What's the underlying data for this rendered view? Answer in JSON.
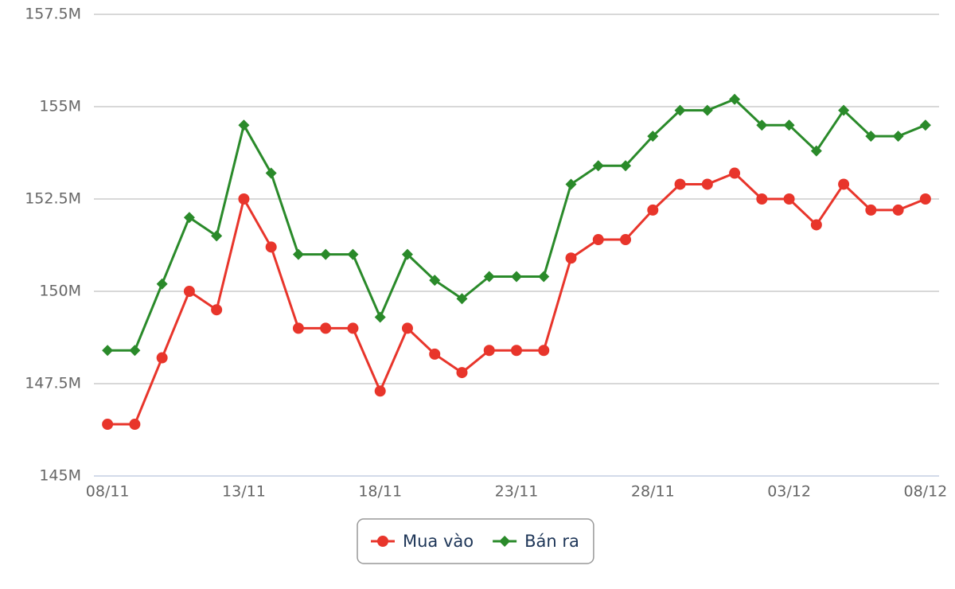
{
  "chart_data": {
    "type": "line",
    "categories": [
      "08/11",
      null,
      null,
      null,
      null,
      "13/11",
      null,
      null,
      null,
      null,
      "18/11",
      null,
      null,
      null,
      null,
      "23/11",
      null,
      null,
      null,
      null,
      "28/11",
      null,
      null,
      null,
      null,
      "03/12",
      null,
      null,
      null,
      null,
      "08/12"
    ],
    "series": [
      {
        "name": "Mua vào",
        "color": "#e8352b",
        "marker": "circle",
        "values": [
          146.4,
          146.4,
          148.2,
          150.0,
          149.5,
          152.5,
          151.2,
          149.0,
          149.0,
          149.0,
          147.3,
          149.0,
          148.3,
          147.8,
          148.4,
          148.4,
          148.4,
          150.9,
          151.4,
          151.4,
          152.2,
          152.9,
          152.9,
          153.2,
          152.5,
          152.5,
          151.8,
          152.9,
          152.2,
          152.2,
          152.5
        ]
      },
      {
        "name": "Bán ra",
        "color": "#2a8a2a",
        "marker": "diamond",
        "values": [
          148.4,
          148.4,
          150.2,
          152.0,
          151.5,
          154.5,
          153.2,
          151.0,
          151.0,
          151.0,
          149.3,
          151.0,
          150.3,
          149.8,
          150.4,
          150.4,
          150.4,
          152.9,
          153.4,
          153.4,
          154.2,
          154.9,
          154.9,
          155.2,
          154.5,
          154.5,
          153.8,
          154.9,
          154.2,
          154.2,
          154.5
        ]
      }
    ],
    "ylim": [
      145,
      157.5
    ],
    "yticks": [
      {
        "value": 145,
        "label": "145M"
      },
      {
        "value": 147.5,
        "label": "147.5M"
      },
      {
        "value": 150,
        "label": "150M"
      },
      {
        "value": 152.5,
        "label": "152.5M"
      },
      {
        "value": 155,
        "label": "155M"
      },
      {
        "value": 157.5,
        "label": "157.5M"
      }
    ],
    "grid": true,
    "legend": "bottom"
  }
}
